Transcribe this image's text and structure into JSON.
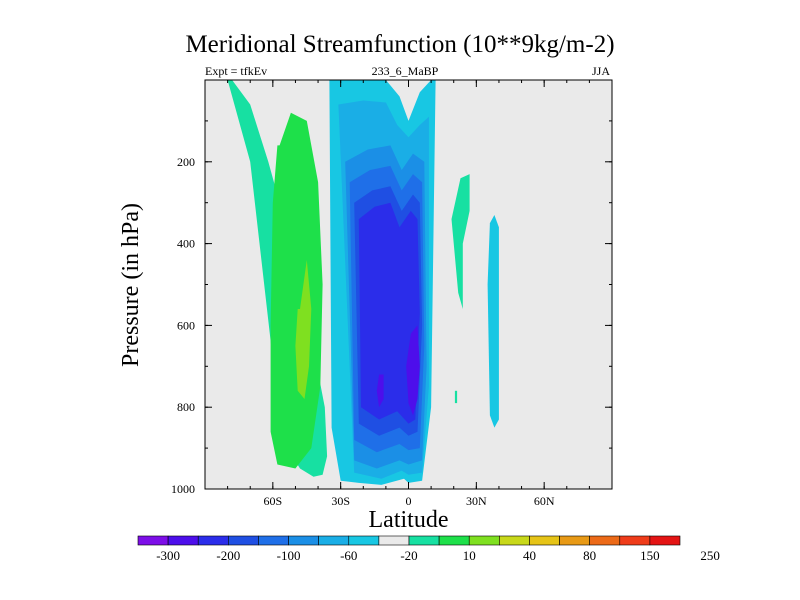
{
  "title": "Meridional Streamfunction (10**9kg/m-2)",
  "subtitle_left": "Expt = tfkEv",
  "subtitle_center": "233_6_MaBP",
  "subtitle_right": "JJA",
  "chart_data": {
    "type": "heatmap",
    "title": "Meridional Streamfunction (10**9kg/m-2)",
    "xlabel": "Latitude",
    "ylabel": "Pressure (in hPa)",
    "xlim": [
      -90,
      90
    ],
    "ylim": [
      1000,
      0
    ],
    "x_ticks": [
      {
        "value": -60,
        "label": "60S"
      },
      {
        "value": -30,
        "label": "30S"
      },
      {
        "value": 0,
        "label": "0"
      },
      {
        "value": 30,
        "label": "30N"
      },
      {
        "value": 60,
        "label": "60N"
      }
    ],
    "y_ticks": [
      {
        "value": 200,
        "label": "200"
      },
      {
        "value": 400,
        "label": "400"
      },
      {
        "value": 600,
        "label": "600"
      },
      {
        "value": 800,
        "label": "800"
      },
      {
        "value": 1000,
        "label": "1000"
      }
    ],
    "colorbar": {
      "labels": [
        "-300",
        "-200",
        "-100",
        "-60",
        "-20",
        "10",
        "40",
        "80",
        "150",
        "250"
      ],
      "colors": [
        "#7d0ee8",
        "#4d0eeb",
        "#2b2dea",
        "#1f4fe3",
        "#1f6fe8",
        "#1b8fe6",
        "#1aaee6",
        "#18c7e3",
        "#eaeaea",
        "#17e0a2",
        "#1ee04a",
        "#7fe020",
        "#c8d81a",
        "#e6c417",
        "#e89a16",
        "#ec6a18",
        "#ef3c1a",
        "#e41414"
      ]
    },
    "contours": [
      {
        "level": "10 to 40",
        "color": "#17e0a2",
        "lat": [
          -80,
          -78,
          -70,
          -62,
          -52,
          -44,
          -37,
          -36,
          -38,
          -42,
          -48,
          -56,
          -70,
          -80
        ],
        "p": [
          0,
          0,
          60,
          200,
          400,
          600,
          800,
          920,
          965,
          970,
          950,
          880,
          200,
          0
        ]
      },
      {
        "level": "40 to 80",
        "color": "#1ee04a",
        "lat": [
          -57,
          -52,
          -45,
          -40,
          -38,
          -39,
          -43,
          -50,
          -58,
          -61,
          -61,
          -60,
          -58
        ],
        "p": [
          160,
          80,
          100,
          250,
          500,
          750,
          900,
          950,
          940,
          860,
          600,
          300,
          160
        ]
      },
      {
        "level": "80 to 150",
        "color": "#7fe020",
        "lat": [
          -48,
          -45,
          -43,
          -44,
          -46,
          -49,
          -50,
          -49
        ],
        "p": [
          560,
          440,
          560,
          700,
          780,
          760,
          650,
          560
        ]
      },
      {
        "level": "-20 to 10",
        "color": "#18c7e3",
        "lat": [
          -35,
          -30,
          -20,
          -10,
          -4,
          0,
          5,
          10,
          12,
          10,
          6,
          0,
          -2,
          -12,
          -22,
          -30,
          -34,
          -35
        ],
        "p": [
          0,
          0,
          0,
          0,
          40,
          100,
          30,
          0,
          0,
          800,
          980,
          985,
          975,
          990,
          985,
          980,
          850,
          0
        ]
      },
      {
        "level": "-60 to -20",
        "color": "#1aaee6",
        "lat": [
          -31,
          -20,
          -10,
          -5,
          0,
          5,
          9,
          9,
          6,
          0,
          -3,
          -12,
          -24,
          -31
        ],
        "p": [
          60,
          50,
          55,
          110,
          140,
          110,
          90,
          750,
          960,
          965,
          955,
          975,
          960,
          60
        ]
      },
      {
        "level": "-100 to -60",
        "color": "#1b8fe6",
        "lat": [
          -28,
          -18,
          -8,
          -3,
          2,
          7,
          8,
          6,
          0,
          -4,
          -14,
          -24,
          -28
        ],
        "p": [
          200,
          170,
          160,
          220,
          180,
          200,
          700,
          930,
          940,
          930,
          950,
          930,
          200
        ]
      },
      {
        "level": "-200 to -100",
        "color": "#1f6fe8",
        "lat": [
          -26,
          -17,
          -8,
          -3,
          2,
          6,
          7,
          5,
          0,
          -4,
          -14,
          -24,
          -26
        ],
        "p": [
          250,
          220,
          210,
          270,
          230,
          250,
          650,
          900,
          905,
          890,
          910,
          880,
          250
        ]
      },
      {
        "level": "-300 to -200",
        "color": "#1f4fe3",
        "lat": [
          -24,
          -16,
          -8,
          -3,
          2,
          5,
          6,
          4,
          0,
          -4,
          -13,
          -22,
          -24
        ],
        "p": [
          300,
          270,
          260,
          320,
          280,
          300,
          600,
          860,
          870,
          850,
          870,
          840,
          300
        ]
      },
      {
        "level": "< -300",
        "color": "#2b2dea",
        "lat": [
          -22,
          -15,
          -8,
          -4,
          1,
          4,
          5,
          3,
          0,
          -5,
          -13,
          -21,
          -22
        ],
        "p": [
          340,
          310,
          300,
          360,
          320,
          340,
          570,
          830,
          840,
          810,
          830,
          800,
          340
        ]
      },
      {
        "level": "min east",
        "color": "#4d0eeb",
        "lat": [
          1,
          4,
          5,
          4,
          2,
          0,
          -1
        ],
        "p": [
          620,
          600,
          700,
          780,
          820,
          790,
          700
        ]
      },
      {
        "level": "min west",
        "color": "#4d0eeb",
        "lat": [
          -13,
          -11,
          -11,
          -13,
          -14
        ],
        "p": [
          720,
          720,
          780,
          800,
          760
        ]
      },
      {
        "level": "NH positive",
        "color": "#17e0a2",
        "lat": [
          19,
          23,
          27,
          27,
          24,
          24,
          22,
          19
        ],
        "p": [
          340,
          240,
          230,
          320,
          400,
          560,
          520,
          340
        ]
      },
      {
        "level": "NH negative",
        "color": "#18c7e3",
        "lat": [
          36,
          38,
          40,
          40,
          38,
          36,
          35
        ],
        "p": [
          350,
          330,
          360,
          830,
          850,
          820,
          500
        ]
      },
      {
        "level": "NH small",
        "color": "#17e0a2",
        "lat": [
          20.5,
          21.5,
          21.5,
          20.5
        ],
        "p": [
          760,
          760,
          790,
          790
        ]
      }
    ]
  }
}
